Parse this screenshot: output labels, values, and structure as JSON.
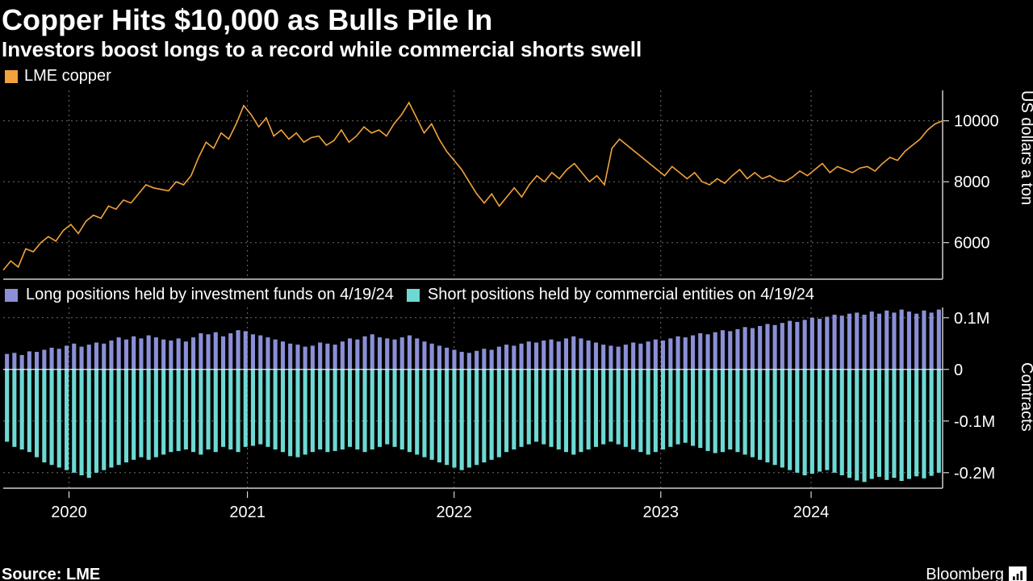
{
  "title": "Copper Hits $10,000 as Bulls Pile In",
  "subtitle": "Investors boost longs to a record while commercial shorts swell",
  "source": "Source: LME",
  "brand": "Bloomberg",
  "xaxis": {
    "labels": [
      "2020",
      "2021",
      "2022",
      "2023",
      "2024"
    ],
    "positions": [
      0.07,
      0.26,
      0.48,
      0.7,
      0.86
    ]
  },
  "top": {
    "type": "line",
    "legend": "LME copper",
    "color": "#f2a33c",
    "ylabel": "US dollars a ton",
    "ylim": [
      4800,
      11000
    ],
    "yticks": [
      6000,
      8000,
      10000
    ],
    "ytick_labels": [
      "6000",
      "8000",
      "10000"
    ],
    "grid_color": "#6f6f6f",
    "grid_dash": "2 4",
    "panel_border": "#9a9a9a",
    "points": [
      5100,
      5400,
      5200,
      5800,
      5700,
      6000,
      6200,
      6050,
      6400,
      6600,
      6300,
      6700,
      6900,
      6800,
      7200,
      7100,
      7400,
      7300,
      7600,
      7900,
      7800,
      7750,
      7700,
      8000,
      7900,
      8200,
      8800,
      9300,
      9100,
      9600,
      9400,
      9900,
      10500,
      10200,
      9800,
      10100,
      9500,
      9700,
      9400,
      9600,
      9300,
      9450,
      9500,
      9200,
      9350,
      9700,
      9300,
      9500,
      9800,
      9600,
      9700,
      9500,
      9900,
      10200,
      10600,
      10100,
      9600,
      9900,
      9400,
      9000,
      8700,
      8400,
      8000,
      7600,
      7300,
      7600,
      7200,
      7500,
      7800,
      7500,
      7900,
      8200,
      8000,
      8300,
      8100,
      8400,
      8600,
      8300,
      8000,
      8200,
      7900,
      9100,
      9400,
      9200,
      9000,
      8800,
      8600,
      8400,
      8200,
      8500,
      8300,
      8100,
      8300,
      8000,
      7900,
      8100,
      7950,
      8200,
      8400,
      8100,
      8300,
      8100,
      8200,
      8050,
      8000,
      8150,
      8350,
      8200,
      8400,
      8600,
      8300,
      8500,
      8400,
      8300,
      8450,
      8500,
      8350,
      8600,
      8800,
      8700,
      9000,
      9200,
      9400,
      9700,
      9900,
      10000
    ]
  },
  "bottom": {
    "type": "bar-mirror",
    "legend_long": "Long positions held by investment funds on 4/19/24",
    "legend_short": "Short positions held by commercial entities on 4/19/24",
    "color_long": "#8a8fd6",
    "color_short": "#6dd9d3",
    "ylabel": "Contracts",
    "ylim": [
      -0.23,
      0.12
    ],
    "yticks": [
      -0.2,
      -0.1,
      0,
      0.1
    ],
    "ytick_labels": [
      "-0.2M",
      "-0.1M",
      "0",
      "0.1M"
    ],
    "grid_color": "#6f6f6f",
    "grid_dash": "2 4",
    "panel_border": "#9a9a9a",
    "longs": [
      0.03,
      0.032,
      0.028,
      0.035,
      0.034,
      0.038,
      0.042,
      0.04,
      0.046,
      0.05,
      0.044,
      0.048,
      0.052,
      0.05,
      0.056,
      0.062,
      0.058,
      0.064,
      0.06,
      0.066,
      0.062,
      0.058,
      0.056,
      0.06,
      0.054,
      0.062,
      0.07,
      0.068,
      0.072,
      0.064,
      0.07,
      0.076,
      0.074,
      0.068,
      0.066,
      0.062,
      0.058,
      0.054,
      0.05,
      0.048,
      0.044,
      0.046,
      0.052,
      0.05,
      0.048,
      0.054,
      0.06,
      0.058,
      0.064,
      0.068,
      0.062,
      0.06,
      0.058,
      0.062,
      0.066,
      0.06,
      0.054,
      0.05,
      0.046,
      0.042,
      0.038,
      0.034,
      0.032,
      0.036,
      0.04,
      0.038,
      0.044,
      0.048,
      0.046,
      0.05,
      0.054,
      0.052,
      0.056,
      0.058,
      0.054,
      0.06,
      0.064,
      0.06,
      0.056,
      0.052,
      0.048,
      0.046,
      0.044,
      0.048,
      0.052,
      0.05,
      0.054,
      0.058,
      0.056,
      0.06,
      0.064,
      0.062,
      0.066,
      0.07,
      0.068,
      0.072,
      0.076,
      0.074,
      0.078,
      0.082,
      0.08,
      0.084,
      0.088,
      0.086,
      0.09,
      0.094,
      0.092,
      0.096,
      0.1,
      0.098,
      0.102,
      0.106,
      0.104,
      0.108,
      0.11,
      0.106,
      0.112,
      0.108,
      0.114,
      0.11,
      0.116,
      0.112,
      0.108,
      0.114,
      0.11,
      0.116
    ],
    "shorts": [
      -0.14,
      -0.15,
      -0.155,
      -0.16,
      -0.17,
      -0.18,
      -0.185,
      -0.19,
      -0.195,
      -0.2,
      -0.205,
      -0.21,
      -0.2,
      -0.195,
      -0.19,
      -0.185,
      -0.18,
      -0.175,
      -0.17,
      -0.175,
      -0.17,
      -0.165,
      -0.16,
      -0.158,
      -0.155,
      -0.16,
      -0.165,
      -0.155,
      -0.16,
      -0.15,
      -0.155,
      -0.16,
      -0.15,
      -0.148,
      -0.145,
      -0.15,
      -0.155,
      -0.16,
      -0.168,
      -0.17,
      -0.165,
      -0.16,
      -0.155,
      -0.16,
      -0.158,
      -0.155,
      -0.15,
      -0.155,
      -0.16,
      -0.155,
      -0.15,
      -0.145,
      -0.15,
      -0.155,
      -0.16,
      -0.165,
      -0.17,
      -0.175,
      -0.18,
      -0.185,
      -0.19,
      -0.195,
      -0.19,
      -0.185,
      -0.18,
      -0.175,
      -0.17,
      -0.16,
      -0.155,
      -0.15,
      -0.145,
      -0.14,
      -0.145,
      -0.15,
      -0.155,
      -0.16,
      -0.165,
      -0.16,
      -0.155,
      -0.15,
      -0.145,
      -0.14,
      -0.145,
      -0.15,
      -0.155,
      -0.16,
      -0.165,
      -0.16,
      -0.155,
      -0.15,
      -0.145,
      -0.142,
      -0.148,
      -0.152,
      -0.158,
      -0.162,
      -0.16,
      -0.155,
      -0.16,
      -0.165,
      -0.17,
      -0.175,
      -0.18,
      -0.185,
      -0.19,
      -0.195,
      -0.2,
      -0.205,
      -0.202,
      -0.198,
      -0.195,
      -0.2,
      -0.205,
      -0.21,
      -0.215,
      -0.218,
      -0.212,
      -0.208,
      -0.214,
      -0.21,
      -0.216,
      -0.212,
      -0.207,
      -0.211,
      -0.206,
      -0.2
    ]
  }
}
